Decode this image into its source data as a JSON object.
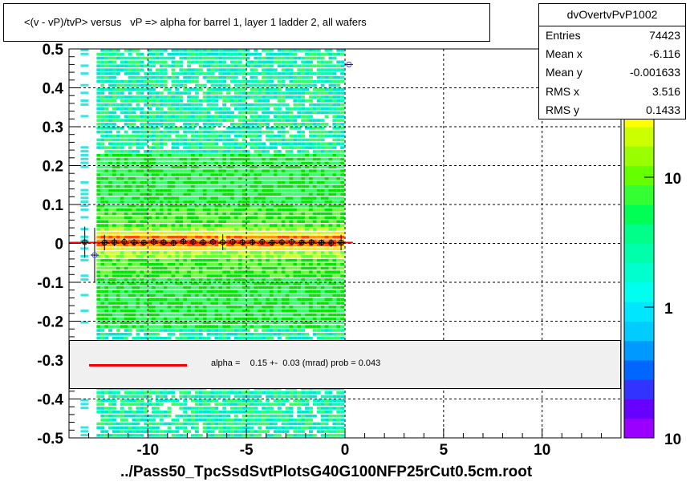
{
  "title": "<(v - vP)/tvP> versus   vP => alpha for barrel 1, layer 1 ladder 2, all wafers",
  "stats": {
    "name": "dvOvertvPvP1002",
    "rows": [
      {
        "label": "Entries",
        "value": "74423"
      },
      {
        "label": "Mean x",
        "value": "-6.116"
      },
      {
        "label": "Mean y",
        "value": "-0.001633"
      },
      {
        "label": "RMS x",
        "value": "3.516"
      },
      {
        "label": "RMS y",
        "value": "0.1433"
      }
    ]
  },
  "legend": {
    "text": "alpha =    0.15 +-  0.03 (mrad) prob = 0.043",
    "color": "#ff0000"
  },
  "xaxis_title": "../Pass50_TpcSsdSvtPlotsG40G100NFP25rCut0.5cm.root",
  "chart_data": {
    "type": "heatmap",
    "xlim": [
      -14,
      14
    ],
    "ylim": [
      -0.5,
      0.5
    ],
    "x_ticks": [
      "-10",
      "-5",
      "0",
      "5",
      "10"
    ],
    "x_tick_values": [
      -10,
      -5,
      0,
      5,
      10
    ],
    "y_ticks": [
      "0.5",
      "0.4",
      "0.3",
      "0.2",
      "0.1",
      "0",
      "-0.1",
      "-0.2",
      "-0.3",
      "-0.4",
      "-0.5"
    ],
    "y_tick_values": [
      0.5,
      0.4,
      0.3,
      0.2,
      0.1,
      0,
      -0.1,
      -0.2,
      -0.3,
      -0.4,
      -0.5
    ],
    "grid": true,
    "grid_style": "dashed",
    "heat_x_range": [
      -12.6,
      0
    ],
    "colorbar_ticks": [
      "10",
      "1",
      "10"
    ],
    "colorbar_tick_values": [
      20,
      1,
      0.1
    ],
    "profile_points": {
      "x": [
        -13.2,
        -12.7,
        -12.2,
        -11.7,
        -11.2,
        -10.7,
        -10.2,
        -9.7,
        -9.2,
        -8.7,
        -8.2,
        -7.7,
        -7.2,
        -6.7,
        -6.2,
        -5.7,
        -5.2,
        -4.7,
        -4.2,
        -3.7,
        -3.2,
        -2.7,
        -2.2,
        -1.7,
        -1.2,
        -0.7,
        -0.2,
        0.2
      ],
      "y": [
        0.003,
        -0.03,
        0.002,
        0.003,
        0.004,
        0.003,
        0.002,
        0.004,
        0.003,
        0.001,
        0.005,
        0.004,
        0.003,
        0.004,
        0.003,
        0.004,
        0.003,
        0.003,
        0.004,
        0.002,
        0.003,
        0.004,
        0.002,
        0.003,
        0.002,
        0.001,
        0.002,
        0.46
      ],
      "yerr": [
        0.04,
        0.07,
        0.02,
        0.01,
        0.01,
        0.008,
        0.008,
        0.008,
        0.008,
        0.008,
        0.008,
        0.008,
        0.008,
        0.008,
        0.02,
        0.008,
        0.008,
        0.008,
        0.008,
        0.008,
        0.008,
        0.008,
        0.008,
        0.008,
        0.008,
        0.01,
        0.02,
        0.0
      ]
    },
    "fit_line": {
      "x": [
        -14,
        0.4
      ],
      "y": [
        0.002,
        0.002
      ]
    }
  }
}
